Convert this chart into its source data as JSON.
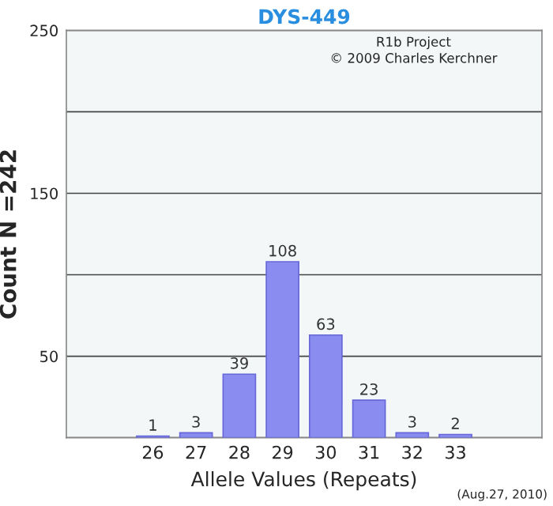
{
  "chart_data": {
    "type": "bar",
    "title": "DYS-449",
    "xlabel": "Allele Values (Repeats)",
    "ylabel": "Count N =242",
    "categories": [
      "26",
      "27",
      "28",
      "29",
      "30",
      "31",
      "32",
      "33"
    ],
    "values": [
      1,
      3,
      39,
      108,
      63,
      23,
      3,
      2
    ],
    "color": "#8a8cf0",
    "data_labels": true,
    "ylim": [
      0,
      250
    ],
    "yticks": [
      {
        "value": 0,
        "label": null
      },
      50,
      {
        "value": 100,
        "label": null
      },
      150,
      {
        "value": 200,
        "label": null
      },
      250
    ],
    "grid": "y",
    "annotations": [
      "R1b Project",
      "© 2009 Charles Kerchner",
      "(Aug.27, 2010)"
    ]
  }
}
